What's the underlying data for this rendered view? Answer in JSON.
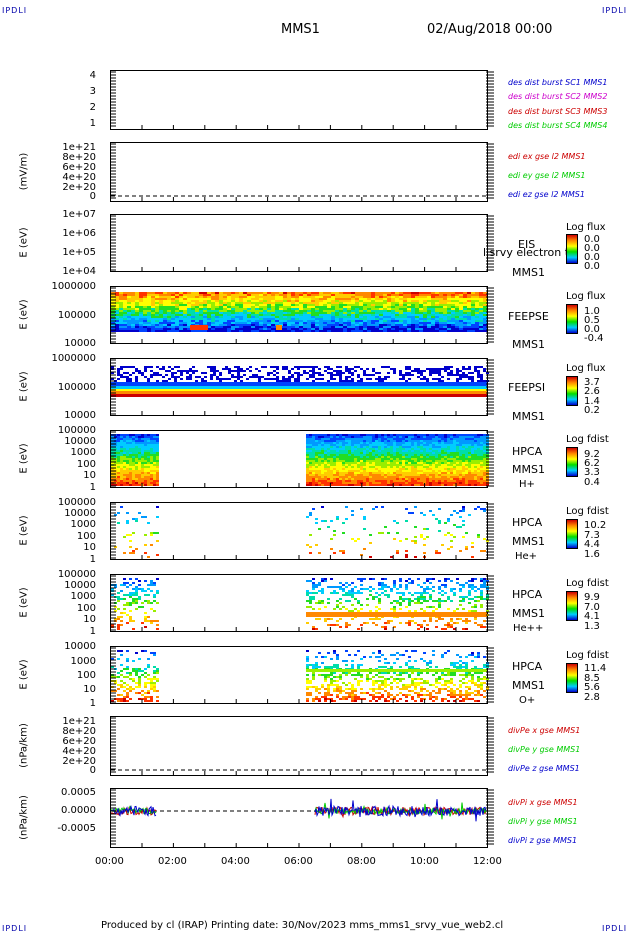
{
  "corners": {
    "tl": "IPDLI",
    "tr": "IPDLI",
    "bl": "IPDLI",
    "br": "IPDLI"
  },
  "header": {
    "title": "MMS1",
    "date": "02/Aug/2018 00:00"
  },
  "footer": "Produced by cl (IRAP)   Printing date: 30/Nov/2023   mms_mms1_srvy_vue_web2.cl",
  "colors": {
    "red": "#cc0000",
    "green": "#00cc00",
    "blue": "#0000cc",
    "magenta": "#cc00cc"
  },
  "chart_data": {
    "type": "heatmap",
    "x_ticks": [
      "00:00",
      "02:00",
      "04:00",
      "06:00",
      "08:00",
      "10:00",
      "12:00"
    ],
    "panels": [
      {
        "ylabel": "",
        "yticks": [
          "4",
          "3",
          "2",
          "1"
        ],
        "legend": [
          {
            "text": "des dist burst SC1 MMS1",
            "color": "#0000cc"
          },
          {
            "text": "des dist burst SC2 MMS2",
            "color": "#cc00cc"
          },
          {
            "text": "des dist burst SC3 MMS3",
            "color": "#cc0000"
          },
          {
            "text": "des dist burst SC4 MMS4",
            "color": "#00cc00"
          }
        ]
      },
      {
        "ylabel": "(mV/m)",
        "yticks": [
          "1e+21",
          "8e+20",
          "6e+20",
          "4e+20",
          "2e+20",
          "0"
        ],
        "legend": [
          {
            "text": "edi ex gse l2 MMS1",
            "color": "#cc0000"
          },
          {
            "text": "edi ey gse l2 MMS1",
            "color": "#00cc00"
          },
          {
            "text": "edi ez gse l2 MMS1",
            "color": "#0000cc"
          }
        ]
      },
      {
        "ylabel": "E (eV)",
        "yticks": [
          "1e+07",
          "1e+06",
          "1e+05",
          "1e+04"
        ],
        "instrument": [
          "EIS",
          "MMS1"
        ],
        "overlay": "l srvy electron to",
        "cb_title": "Log flux",
        "cb_values": [
          "0.0",
          "0.0",
          "0.0",
          "0.0"
        ]
      },
      {
        "ylabel": "E (eV)",
        "yticks": [
          "1000000",
          "100000",
          "10000"
        ],
        "instrument": [
          "FEEPSE",
          "MMS1"
        ],
        "cb_title": "Log flux",
        "cb_values": [
          "1.0",
          "0.5",
          "0.0",
          "-0.4"
        ]
      },
      {
        "ylabel": "E (eV)",
        "yticks": [
          "1000000",
          "100000",
          "10000"
        ],
        "instrument": [
          "FEEPSI",
          "MMS1"
        ],
        "cb_title": "Log flux",
        "cb_values": [
          "3.7",
          "2.6",
          "1.4",
          "0.2"
        ]
      },
      {
        "ylabel": "E (eV)",
        "yticks": [
          "100000",
          "10000",
          "1000",
          "100",
          "10",
          "1"
        ],
        "instrument": [
          "HPCA",
          "MMS1",
          "H+"
        ],
        "cb_title": "Log fdist",
        "cb_values": [
          "9.2",
          "6.2",
          "3.3",
          "0.4"
        ]
      },
      {
        "ylabel": "E (eV)",
        "yticks": [
          "100000",
          "10000",
          "1000",
          "100",
          "10",
          "1"
        ],
        "instrument": [
          "HPCA",
          "MMS1",
          "He+"
        ],
        "cb_title": "Log fdist",
        "cb_values": [
          "10.2",
          "7.3",
          "4.4",
          "1.6"
        ]
      },
      {
        "ylabel": "E (eV)",
        "yticks": [
          "100000",
          "10000",
          "1000",
          "100",
          "10",
          "1"
        ],
        "instrument": [
          "HPCA",
          "MMS1",
          "He++"
        ],
        "cb_title": "Log fdist",
        "cb_values": [
          "9.9",
          "7.0",
          "4.1",
          "1.3"
        ]
      },
      {
        "ylabel": "E (eV)",
        "yticks": [
          "10000",
          "1000",
          "100",
          "10",
          "1"
        ],
        "instrument": [
          "HPCA",
          "MMS1",
          "O+"
        ],
        "cb_title": "Log fdist",
        "cb_values": [
          "11.4",
          "8.5",
          "5.6",
          "2.8"
        ]
      },
      {
        "ylabel": "(nPa/km)",
        "yticks": [
          "1e+21",
          "8e+20",
          "6e+20",
          "4e+20",
          "2e+20",
          "0"
        ],
        "legend": [
          {
            "text": "divPe x gse MMS1",
            "color": "#cc0000"
          },
          {
            "text": "divPe y gse MMS1",
            "color": "#00cc00"
          },
          {
            "text": "divPe z gse MMS1",
            "color": "#0000cc"
          }
        ]
      },
      {
        "ylabel": "(nPa/km)",
        "yticks": [
          "0.0005",
          "0.0000",
          "-0.0005"
        ],
        "legend": [
          {
            "text": "divPi x gse MMS1",
            "color": "#cc0000"
          },
          {
            "text": "divPi y gse MMS1",
            "color": "#00cc00"
          },
          {
            "text": "divPi z gse MMS1",
            "color": "#0000cc"
          }
        ]
      }
    ]
  }
}
